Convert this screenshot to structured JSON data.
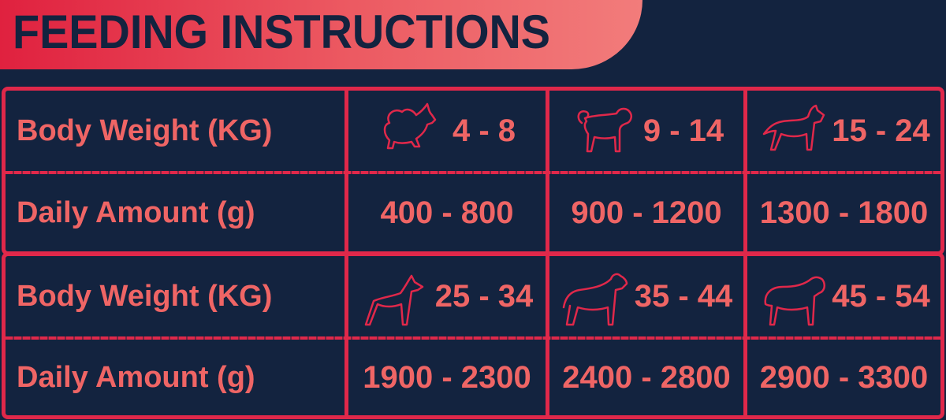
{
  "title": "FEEDING INSTRUCTIONS",
  "colors": {
    "background": "#13233f",
    "accent": "#e0284a",
    "text": "#ef6565"
  },
  "blocks": [
    {
      "weight_label": "Body Weight (KG)",
      "amount_label": "Daily Amount (g)",
      "columns": [
        {
          "icon": "pomeranian-icon",
          "weight": "4 - 8",
          "amount": "400 - 800"
        },
        {
          "icon": "pug-icon",
          "weight": "9 - 14",
          "amount": "900 - 1200"
        },
        {
          "icon": "bulldog-icon",
          "weight": "15 - 24",
          "amount": "1300 - 1800"
        }
      ]
    },
    {
      "weight_label": "Body Weight (KG)",
      "amount_label": "Daily Amount (g)",
      "columns": [
        {
          "icon": "doberman-icon",
          "weight": "25 - 34",
          "amount": "1900 - 2300"
        },
        {
          "icon": "rottweiler-icon",
          "weight": "35 - 44",
          "amount": "2400 - 2800"
        },
        {
          "icon": "mastiff-icon",
          "weight": "45 - 54",
          "amount": "2900 - 3300"
        }
      ]
    }
  ]
}
